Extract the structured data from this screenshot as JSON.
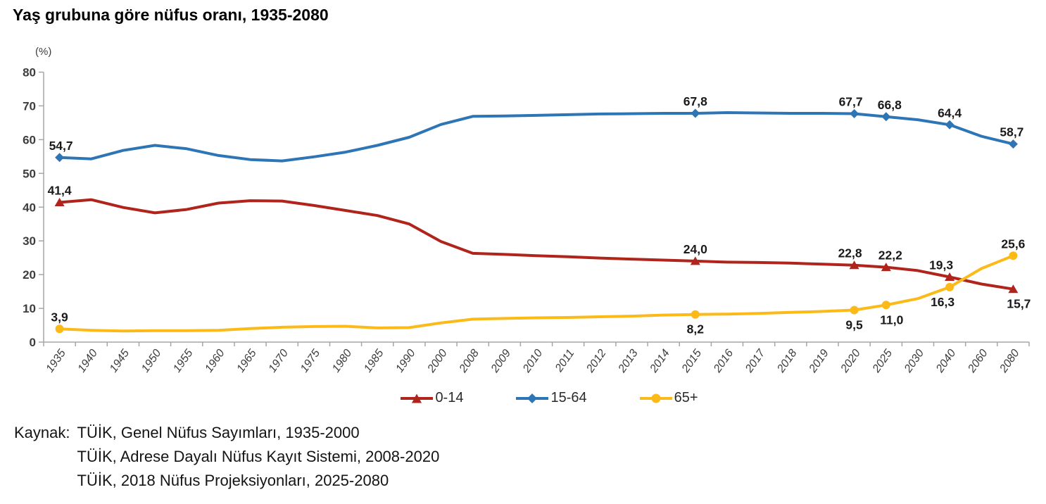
{
  "title": "Yaş grubuna göre nüfus oranı, 1935-2080",
  "source": {
    "label": "Kaynak:",
    "lines": [
      "TÜİK, Genel Nüfus Sayımları, 1935-2000",
      "TÜİK, Adrese Dayalı Nüfus Kayıt Sistemi, 2008-2020",
      "TÜİK, 2018 Nüfus Projeksiyonları, 2025-2080"
    ]
  },
  "chart_data": {
    "type": "line",
    "title": "Yaş grubuna göre nüfus oranı, 1935-2080",
    "xlabel": "",
    "ylabel": "(%)",
    "ylim": [
      0,
      80
    ],
    "ytick_step": 10,
    "grid": false,
    "legend_position": "bottom",
    "axis_color": "#a6a6a6",
    "tick_label_color": "#3d3d3d",
    "data_label_color": "#1a1a1a",
    "categories": [
      "1935",
      "1940",
      "1945",
      "1950",
      "1955",
      "1960",
      "1965",
      "1970",
      "1975",
      "1980",
      "1985",
      "1990",
      "2000",
      "2008",
      "2009",
      "2010",
      "2011",
      "2012",
      "2013",
      "2014",
      "2015",
      "2016",
      "2017",
      "2018",
      "2019",
      "2020",
      "2025",
      "2030",
      "2040",
      "2060",
      "2080"
    ],
    "series": [
      {
        "name": "0-14",
        "color": "#b0241c",
        "marker": "triangle",
        "values": [
          41.4,
          42.2,
          39.9,
          38.3,
          39.3,
          41.2,
          41.9,
          41.8,
          40.5,
          39.0,
          37.5,
          35.0,
          29.8,
          26.3,
          26.0,
          25.6,
          25.3,
          24.9,
          24.6,
          24.3,
          24.0,
          23.7,
          23.6,
          23.4,
          23.1,
          22.8,
          22.2,
          21.2,
          19.3,
          17.2,
          15.7
        ],
        "annotations": [
          {
            "i": 0,
            "text": "41,4",
            "pos": "above"
          },
          {
            "i": 20,
            "text": "24,0",
            "pos": "above"
          },
          {
            "i": 25,
            "text": "22,8",
            "pos": "above",
            "dx": -6
          },
          {
            "i": 26,
            "text": "22,2",
            "pos": "above",
            "dx": 6
          },
          {
            "i": 28,
            "text": "19,3",
            "pos": "above",
            "dx": -12
          },
          {
            "i": 30,
            "text": "15,7",
            "pos": "below",
            "dx": 8
          }
        ]
      },
      {
        "name": "15-64",
        "color": "#2e75b6",
        "marker": "diamond",
        "values": [
          54.7,
          54.3,
          56.8,
          58.3,
          57.3,
          55.3,
          54.1,
          53.7,
          54.9,
          56.3,
          58.3,
          60.7,
          64.5,
          66.9,
          67.0,
          67.2,
          67.4,
          67.6,
          67.7,
          67.8,
          67.8,
          68.0,
          67.9,
          67.8,
          67.8,
          67.7,
          66.8,
          65.9,
          64.4,
          61.0,
          58.7
        ],
        "annotations": [
          {
            "i": 0,
            "text": "54,7",
            "pos": "above",
            "dx": 2
          },
          {
            "i": 20,
            "text": "67,8",
            "pos": "above"
          },
          {
            "i": 25,
            "text": "67,7",
            "pos": "above",
            "dx": -5
          },
          {
            "i": 26,
            "text": "66,8",
            "pos": "above",
            "dx": 5
          },
          {
            "i": 28,
            "text": "64,4",
            "pos": "above"
          },
          {
            "i": 30,
            "text": "58,7",
            "pos": "above",
            "dx": -2
          }
        ]
      },
      {
        "name": "65+",
        "color": "#fbba17",
        "marker": "circle",
        "values": [
          3.9,
          3.5,
          3.3,
          3.4,
          3.4,
          3.5,
          4.0,
          4.4,
          4.6,
          4.7,
          4.2,
          4.3,
          5.7,
          6.8,
          7.0,
          7.2,
          7.3,
          7.5,
          7.7,
          8.0,
          8.2,
          8.3,
          8.5,
          8.8,
          9.1,
          9.5,
          11.0,
          12.9,
          16.3,
          21.8,
          25.6
        ],
        "annotations": [
          {
            "i": 0,
            "text": "3,9",
            "pos": "above"
          },
          {
            "i": 20,
            "text": "8,2",
            "pos": "below"
          },
          {
            "i": 25,
            "text": "9,5",
            "pos": "below"
          },
          {
            "i": 26,
            "text": "11,0",
            "pos": "below",
            "dx": 8
          },
          {
            "i": 28,
            "text": "16,3",
            "pos": "below",
            "dx": -10
          },
          {
            "i": 30,
            "text": "25,6",
            "pos": "above"
          }
        ]
      }
    ]
  }
}
